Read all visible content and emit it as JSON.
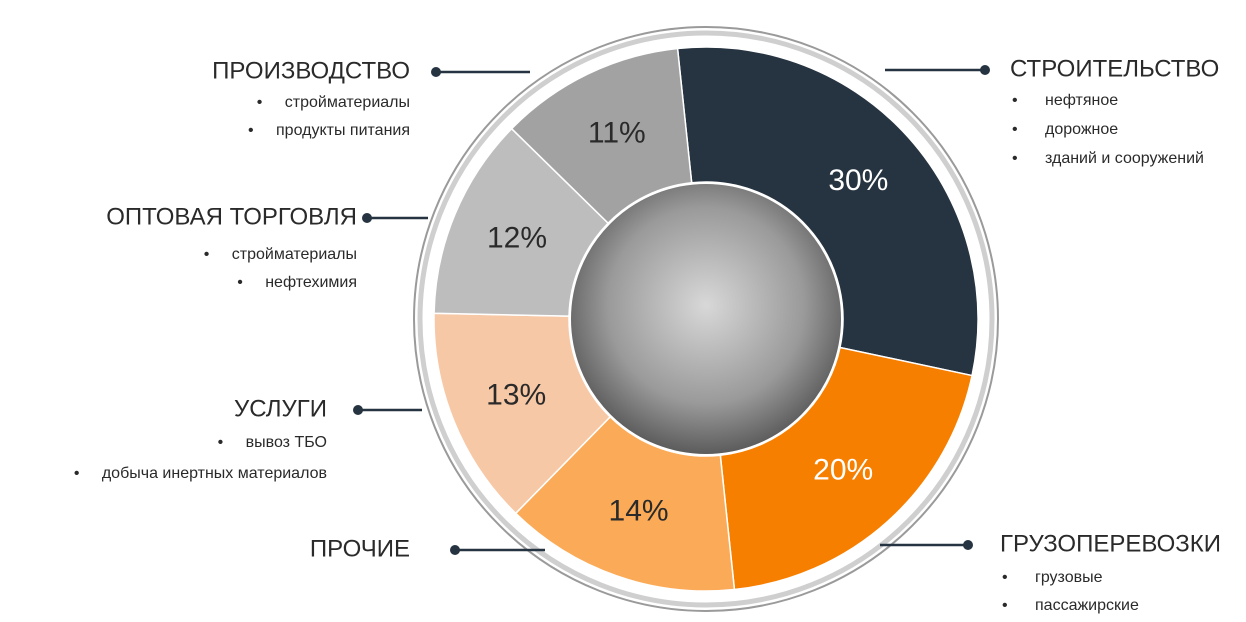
{
  "chart_data": {
    "type": "donut",
    "categories": [
      "СТРОИТЕЛЬСТВО",
      "ГРУЗОПЕРЕВОЗКИ",
      "ПРОЧИЕ",
      "УСЛУГИ",
      "ОПТОВАЯ ТОРГОВЛЯ",
      "ПРОИЗВОДСТВО"
    ],
    "values": [
      30,
      20,
      14,
      13,
      12,
      11
    ],
    "value_labels": [
      "30%",
      "20%",
      "14%",
      "13%",
      "12%",
      "11%"
    ],
    "colors": [
      "#263340",
      "#f77f00",
      "#fbab57",
      "#f7c8a6",
      "#bdbdbd",
      "#a2a2a2"
    ],
    "details": [
      [
        "нефтяное",
        "дорожное",
        "зданий и сооружений"
      ],
      [
        "грузовые",
        "пассажирские"
      ],
      [],
      [
        "вывоз ТБО",
        "добыча инертных материалов"
      ],
      [
        "стройматериалы",
        "нефтехимия"
      ],
      [
        "стройматериалы",
        "продукты питания"
      ]
    ]
  }
}
